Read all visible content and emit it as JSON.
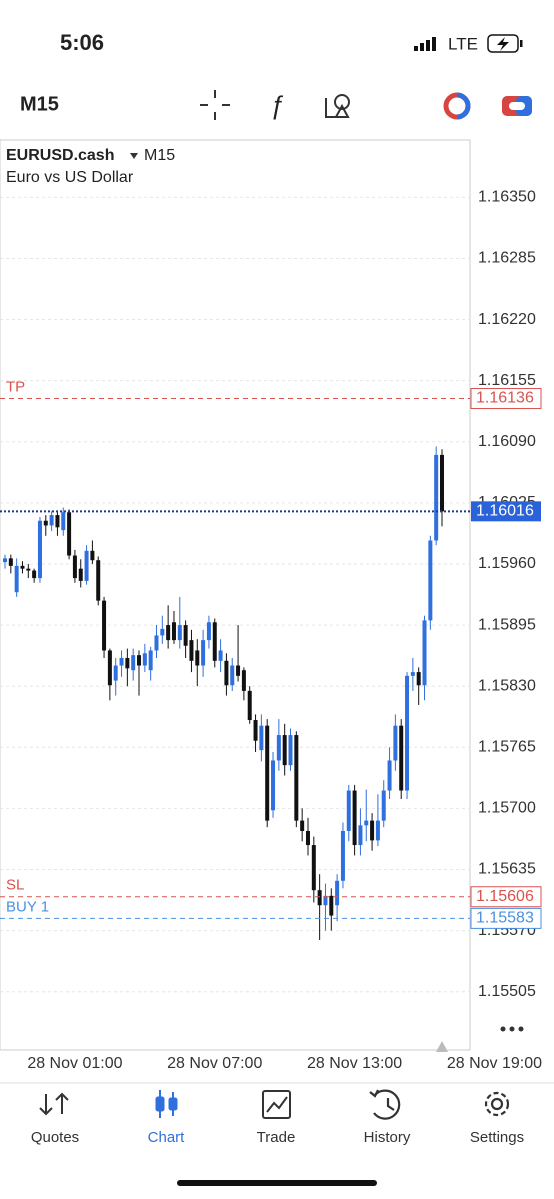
{
  "status_bar": {
    "time": "5:06",
    "network": "LTE"
  },
  "toolbar": {
    "timeframe": "M15"
  },
  "chart_data": {
    "type": "candlestick",
    "title": "EURUSD.cash",
    "timeframe": "M15",
    "subtitle": "Euro vs US Dollar",
    "ylim": [
      1.15443,
      1.16411
    ],
    "yticks": [
      {
        "value": 1.1635,
        "label": "1.16350"
      },
      1.16285,
      {
        "value": 1.1622,
        "label": "1.16220"
      },
      1.16155,
      {
        "value": 1.1609,
        "label": "1.16090"
      },
      1.16025,
      {
        "value": 1.1596,
        "label": "1.15960"
      },
      1.15895,
      {
        "value": 1.1583,
        "label": "1.15830"
      },
      1.15765,
      {
        "value": 1.157,
        "label": "1.15700"
      },
      1.15635,
      {
        "value": 1.1557,
        "label": "1.15570"
      },
      1.15505
    ],
    "grid": true,
    "up_color": "#2f6fde",
    "down_color": "#111111",
    "xtick_labels": [
      "28 Nov 01:00",
      "28 Nov 07:00",
      "28 Nov 13:00",
      "28 Nov 19:00"
    ],
    "open": [
      1.15962,
      1.15966,
      1.1593,
      1.15958,
      1.15955,
      1.15953,
      1.15945,
      1.16006,
      1.16001,
      1.16012,
      1.15996,
      1.16015,
      1.15969,
      1.15955,
      1.15942,
      1.15974,
      1.15964,
      1.15921,
      1.15868,
      1.15836,
      1.15852,
      1.1586,
      1.15847,
      1.15863,
      1.15852,
      1.15847,
      1.15868,
      1.15884,
      1.15895,
      1.15898,
      1.15879,
      1.15895,
      1.15879,
      1.15868,
      1.15852,
      1.15879,
      1.15898,
      1.15857,
      1.15857,
      1.15831,
      1.15852,
      1.15847,
      1.15825,
      1.15794,
      1.15762,
      1.15788,
      1.15698,
      1.15751,
      1.15778,
      1.15746,
      1.15778,
      1.15687,
      1.15676,
      1.15661,
      1.15613,
      1.15597,
      1.15607,
      1.15597,
      1.15623,
      1.15676,
      1.15719,
      1.15661,
      1.15682,
      1.15687,
      1.15666,
      1.15687,
      1.15719,
      1.15751,
      1.15788,
      1.15719,
      1.15841,
      1.15845,
      1.15831,
      1.159,
      1.15985,
      1.16076
    ],
    "high": [
      1.1597,
      1.1597,
      1.15966,
      1.15963,
      1.1596,
      1.15955,
      1.1601,
      1.16012,
      1.16016,
      1.16015,
      1.1602,
      1.16018,
      1.15975,
      1.15965,
      1.1598,
      1.15985,
      1.15968,
      1.15925,
      1.1587,
      1.1586,
      1.15868,
      1.1587,
      1.1587,
      1.15868,
      1.15875,
      1.15872,
      1.15895,
      1.15905,
      1.15916,
      1.1591,
      1.15925,
      1.159,
      1.1589,
      1.1588,
      1.1589,
      1.15905,
      1.15902,
      1.1588,
      1.15865,
      1.1586,
      1.15895,
      1.1585,
      1.1583,
      1.158,
      1.158,
      1.15795,
      1.1576,
      1.15795,
      1.1579,
      1.15785,
      1.15782,
      1.157,
      1.1569,
      1.1567,
      1.1563,
      1.1562,
      1.15615,
      1.1563,
      1.15685,
      1.15725,
      1.15725,
      1.157,
      1.1572,
      1.15695,
      1.15715,
      1.1573,
      1.15765,
      1.158,
      1.15795,
      1.15845,
      1.1586,
      1.1585,
      1.15905,
      1.1599,
      1.16085,
      1.16082
    ],
    "low": [
      1.15955,
      1.1595,
      1.15925,
      1.1595,
      1.15945,
      1.1594,
      1.1594,
      1.1599,
      1.15995,
      1.1599,
      1.1599,
      1.15965,
      1.1594,
      1.15935,
      1.15938,
      1.1596,
      1.15916,
      1.1586,
      1.15815,
      1.1582,
      1.1584,
      1.1583,
      1.15836,
      1.1582,
      1.15845,
      1.15836,
      1.1586,
      1.15875,
      1.1587,
      1.15875,
      1.1587,
      1.1586,
      1.15845,
      1.1583,
      1.1584,
      1.1587,
      1.1585,
      1.15845,
      1.1582,
      1.15825,
      1.15835,
      1.15815,
      1.1579,
      1.1576,
      1.1575,
      1.1568,
      1.1569,
      1.1574,
      1.15735,
      1.1574,
      1.1568,
      1.15665,
      1.1565,
      1.156,
      1.1556,
      1.1557,
      1.1557,
      1.1558,
      1.15615,
      1.15665,
      1.1565,
      1.1565,
      1.15665,
      1.15655,
      1.1566,
      1.1568,
      1.1571,
      1.1574,
      1.1571,
      1.1571,
      1.15825,
      1.1581,
      1.15815,
      1.1589,
      1.1598,
      1.16
    ],
    "close": [
      1.15966,
      1.15958,
      1.15958,
      1.15955,
      1.15953,
      1.15945,
      1.16006,
      1.16001,
      1.16012,
      1.15999,
      1.16015,
      1.15969,
      1.15945,
      1.15942,
      1.15974,
      1.15964,
      1.15921,
      1.15868,
      1.15831,
      1.15852,
      1.1586,
      1.15849,
      1.15863,
      1.15852,
      1.15865,
      1.15868,
      1.15884,
      1.15891,
      1.15879,
      1.15879,
      1.15895,
      1.15873,
      1.15857,
      1.15852,
      1.15879,
      1.15898,
      1.15857,
      1.15868,
      1.15831,
      1.15852,
      1.15841,
      1.15825,
      1.15794,
      1.15772,
      1.15788,
      1.15687,
      1.15751,
      1.15778,
      1.15746,
      1.15778,
      1.15687,
      1.15676,
      1.15661,
      1.15613,
      1.15597,
      1.15607,
      1.15586,
      1.15623,
      1.15676,
      1.15719,
      1.15661,
      1.15682,
      1.15687,
      1.15666,
      1.15687,
      1.15719,
      1.15751,
      1.15788,
      1.15719,
      1.15841,
      1.15845,
      1.15831,
      1.159,
      1.15985,
      1.16076,
      1.16016
    ],
    "price_lines": [
      {
        "label": "TP",
        "value": 1.16136,
        "color": "#d9534f",
        "style": "dashed"
      },
      {
        "label": "SL",
        "value": 1.15606,
        "color": "#d9534f",
        "style": "dashed"
      },
      {
        "label": "BUY 1",
        "value": 1.15583,
        "color": "#4a90e2",
        "style": "dashed"
      }
    ],
    "current_price": {
      "value": 1.16016,
      "color": "#1a3a8a",
      "tag_color": "#2962d9"
    }
  },
  "tabs": [
    "Quotes",
    "Chart",
    "Trade",
    "History",
    "Settings"
  ],
  "active_tab": "Chart"
}
